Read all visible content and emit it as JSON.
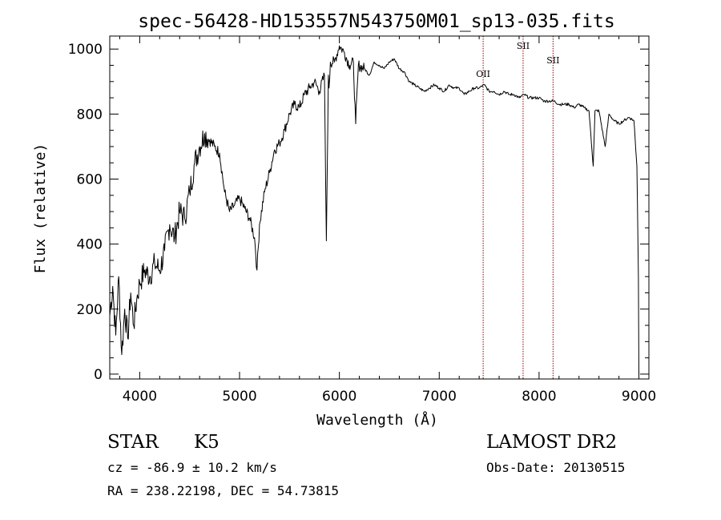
{
  "chart_data": {
    "type": "line",
    "title": "spec-56428-HD153557N543750M01_sp13-035.fits",
    "xlabel": "Wavelength (Å)",
    "ylabel": "Flux (relative)",
    "xlim": [
      3700,
      9100
    ],
    "ylim": [
      -15,
      1040
    ],
    "xticks": [
      4000,
      5000,
      6000,
      7000,
      8000,
      9000
    ],
    "yticks": [
      0,
      200,
      400,
      600,
      800,
      1000
    ],
    "grid": false,
    "line_color": "#000000",
    "marker_color": "#8b0000",
    "series": [
      {
        "x": [
          3700,
          3730,
          3760,
          3790,
          3820,
          3850,
          3880,
          3910,
          3940,
          3970,
          4000,
          4050,
          4100,
          4150,
          4200,
          4250,
          4300,
          4350,
          4400,
          4450,
          4500,
          4550,
          4600,
          4650,
          4700,
          4750,
          4800,
          4850,
          4900,
          4950,
          5000,
          5050,
          5100,
          5150,
          5175,
          5200,
          5250,
          5300,
          5350,
          5400,
          5450,
          5500,
          5550,
          5600,
          5650,
          5700,
          5750,
          5800,
          5850,
          5870,
          5890,
          5896,
          5910,
          5950,
          6000,
          6050,
          6100,
          6140,
          6163,
          6190,
          6250,
          6300,
          6350,
          6400,
          6450,
          6500,
          6550,
          6600,
          6650,
          6700,
          6750,
          6800,
          6850,
          6900,
          6950,
          7000,
          7050,
          7100,
          7150,
          7200,
          7250,
          7300,
          7350,
          7400,
          7450,
          7500,
          7550,
          7600,
          7650,
          7700,
          7750,
          7800,
          7850,
          7900,
          7950,
          8000,
          8050,
          8100,
          8150,
          8200,
          8250,
          8300,
          8350,
          8400,
          8450,
          8500,
          8542,
          8560,
          8600,
          8662,
          8700,
          8750,
          8800,
          8850,
          8900,
          8950,
          8980,
          8995,
          9000
        ],
        "y": [
          180,
          270,
          120,
          300,
          60,
          200,
          110,
          250,
          150,
          230,
          280,
          320,
          300,
          340,
          320,
          380,
          460,
          420,
          500,
          480,
          560,
          650,
          700,
          740,
          720,
          700,
          680,
          560,
          500,
          520,
          540,
          510,
          480,
          420,
          320,
          460,
          560,
          620,
          690,
          710,
          750,
          800,
          830,
          820,
          860,
          880,
          900,
          870,
          920,
          410,
          920,
          880,
          960,
          960,
          1010,
          990,
          950,
          960,
          770,
          950,
          940,
          920,
          960,
          950,
          940,
          960,
          970,
          940,
          930,
          900,
          890,
          880,
          870,
          880,
          890,
          880,
          870,
          890,
          880,
          880,
          860,
          870,
          880,
          880,
          890,
          870,
          870,
          860,
          870,
          860,
          860,
          850,
          860,
          850,
          850,
          850,
          840,
          840,
          840,
          830,
          830,
          830,
          820,
          830,
          820,
          810,
          640,
          810,
          810,
          700,
          800,
          780,
          770,
          780,
          790,
          780,
          640,
          300,
          0
        ]
      }
    ],
    "lines": [
      {
        "label": "OII",
        "x": 7440
      },
      {
        "label": "SII",
        "x": 7840
      },
      {
        "label": "SII",
        "x": 8140
      }
    ]
  },
  "footer": {
    "class_label": "STAR",
    "subclass": "K5",
    "survey": "LAMOST DR2",
    "cz": "cz = -86.9 ± 10.2 km/s",
    "obs_date": "Obs-Date: 20130515",
    "coords": "RA = 238.22198, DEC =  54.73815"
  }
}
